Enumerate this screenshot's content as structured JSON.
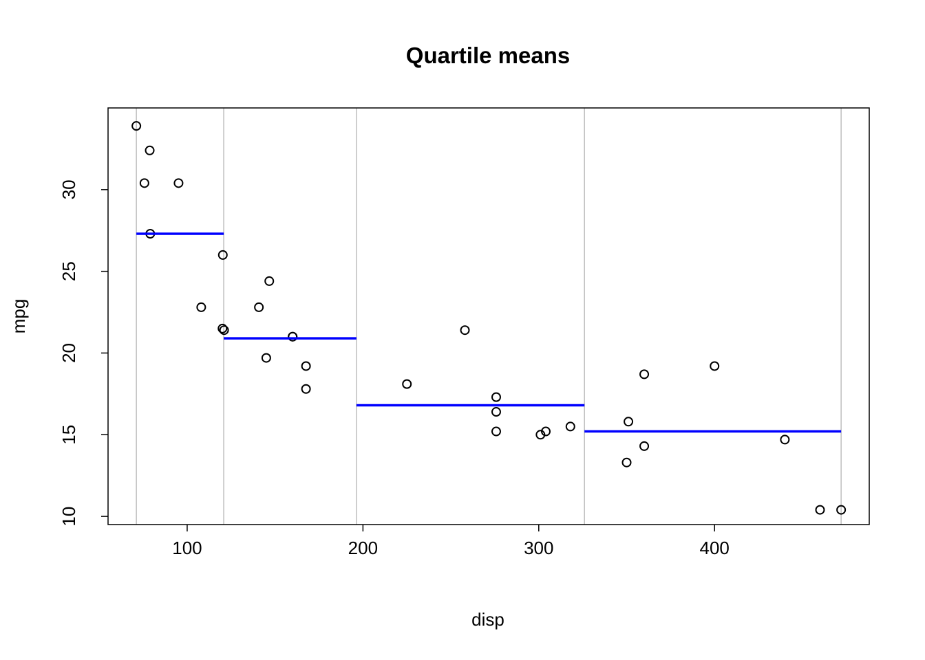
{
  "chart_data": {
    "type": "scatter",
    "title": "Quartile means",
    "xlabel": "disp",
    "ylabel": "mpg",
    "xlim": [
      55,
      488
    ],
    "ylim": [
      9.5,
      35.0
    ],
    "x_ticks": [
      100,
      200,
      300,
      400
    ],
    "y_ticks": [
      10,
      15,
      20,
      25,
      30
    ],
    "x_tick_labels": [
      "100",
      "200",
      "300",
      "400"
    ],
    "y_tick_labels": [
      "10",
      "15",
      "20",
      "25",
      "30"
    ],
    "grid": false,
    "legend": "none",
    "series": [
      {
        "type": "scatter",
        "marker": "open-circle",
        "color": "#000000",
        "points": [
          {
            "x": 71.1,
            "y": 33.9
          },
          {
            "x": 75.7,
            "y": 30.4
          },
          {
            "x": 78.7,
            "y": 32.4
          },
          {
            "x": 79.0,
            "y": 27.3
          },
          {
            "x": 95.1,
            "y": 30.4
          },
          {
            "x": 108.0,
            "y": 22.8
          },
          {
            "x": 120.1,
            "y": 21.5
          },
          {
            "x": 120.3,
            "y": 26.0
          },
          {
            "x": 121.0,
            "y": 21.4
          },
          {
            "x": 140.8,
            "y": 22.8
          },
          {
            "x": 145.0,
            "y": 19.7
          },
          {
            "x": 146.7,
            "y": 24.4
          },
          {
            "x": 160.0,
            "y": 21.0
          },
          {
            "x": 160.0,
            "y": 21.0
          },
          {
            "x": 167.6,
            "y": 19.2
          },
          {
            "x": 167.6,
            "y": 17.8
          },
          {
            "x": 225.0,
            "y": 18.1
          },
          {
            "x": 258.0,
            "y": 21.4
          },
          {
            "x": 275.8,
            "y": 16.4
          },
          {
            "x": 275.8,
            "y": 17.3
          },
          {
            "x": 275.8,
            "y": 15.2
          },
          {
            "x": 301.0,
            "y": 15.0
          },
          {
            "x": 304.0,
            "y": 15.2
          },
          {
            "x": 318.0,
            "y": 15.5
          },
          {
            "x": 350.0,
            "y": 13.3
          },
          {
            "x": 351.0,
            "y": 15.8
          },
          {
            "x": 360.0,
            "y": 18.7
          },
          {
            "x": 360.0,
            "y": 14.3
          },
          {
            "x": 400.0,
            "y": 19.2
          },
          {
            "x": 440.0,
            "y": 14.7
          },
          {
            "x": 460.0,
            "y": 10.4
          },
          {
            "x": 472.0,
            "y": 10.4
          }
        ]
      },
      {
        "type": "segments",
        "color": "#0000ff",
        "segments": [
          {
            "x_start": 71.1,
            "x_end": 120.8,
            "y": 27.3
          },
          {
            "x_start": 120.8,
            "x_end": 196.3,
            "y": 20.9
          },
          {
            "x_start": 196.3,
            "x_end": 326.0,
            "y": 16.8
          },
          {
            "x_start": 326.0,
            "x_end": 472.0,
            "y": 15.2
          }
        ]
      }
    ],
    "vertical_lines": {
      "color": "#bebebe",
      "x": [
        71.1,
        120.8,
        196.3,
        326.0,
        472.0
      ]
    }
  }
}
